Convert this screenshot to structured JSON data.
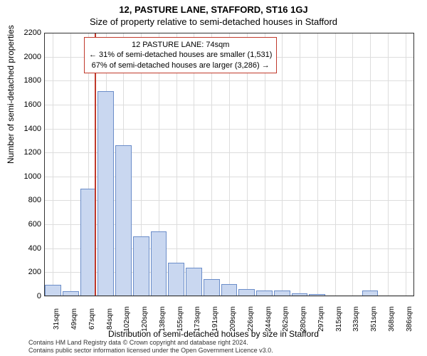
{
  "titles": {
    "main": "12, PASTURE LANE, STAFFORD, ST16 1GJ",
    "sub": "Size of property relative to semi-detached houses in Stafford"
  },
  "axes": {
    "ylabel": "Number of semi-detached properties",
    "xlabel": "Distribution of semi-detached houses by size in Stafford"
  },
  "chart": {
    "type": "histogram",
    "background_color": "#ffffff",
    "grid_color": "#dddddd",
    "bar_fill": "#c9d7f0",
    "bar_border": "#6b8dc9",
    "marker_color": "#c0392b",
    "ylim": [
      0,
      2200
    ],
    "ytick_step": 200,
    "yticks": [
      0,
      200,
      400,
      600,
      800,
      1000,
      1200,
      1400,
      1600,
      1800,
      2000,
      2200
    ],
    "xticks": [
      "31sqm",
      "49sqm",
      "67sqm",
      "84sqm",
      "102sqm",
      "120sqm",
      "138sqm",
      "155sqm",
      "173sqm",
      "191sqm",
      "209sqm",
      "226sqm",
      "244sqm",
      "262sqm",
      "280sqm",
      "297sqm",
      "315sqm",
      "333sqm",
      "351sqm",
      "368sqm",
      "386sqm"
    ],
    "bars": [
      95,
      40,
      900,
      1710,
      1260,
      500,
      540,
      280,
      240,
      140,
      100,
      60,
      50,
      45,
      25,
      20,
      0,
      0,
      45,
      0,
      0
    ],
    "marker_x": 74,
    "xmin": 23,
    "xmax": 395
  },
  "info_box": {
    "line1": "12 PASTURE LANE: 74sqm",
    "line2": "← 31% of semi-detached houses are smaller (1,531)",
    "line3": "67% of semi-detached houses are larger (3,286) →"
  },
  "footer": {
    "line1": "Contains HM Land Registry data © Crown copyright and database right 2024.",
    "line2": "Contains public sector information licensed under the Open Government Licence v3.0."
  }
}
